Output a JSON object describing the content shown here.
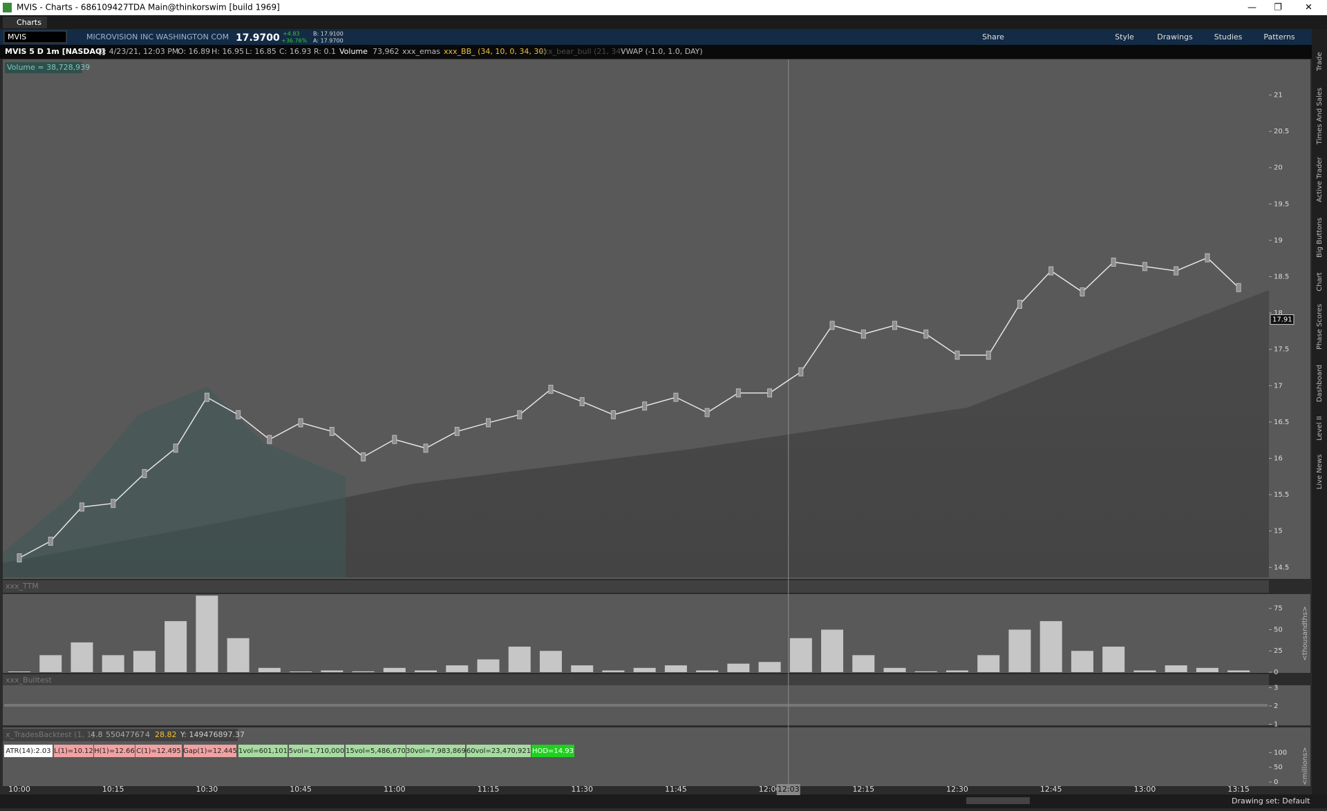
{
  "window": {
    "title": "MVIS - Charts - 686109427TDA Main@thinkorswim [build 1969]",
    "tab": "Charts"
  },
  "toolbar": {
    "symbol": "MVIS",
    "company": "MICROVISION INC WASHINGTON COM",
    "last": "17.9700",
    "change": "+4.83",
    "change_pct": "+36.76%",
    "bid": "B: 17.9100",
    "ask": "A: 17.9700",
    "buttons": [
      "Share",
      "Style",
      "Drawings",
      "Studies",
      "Patterns"
    ]
  },
  "info_bar": [
    "MVIS 5 D 1m [NASDAQ]",
    "D: 4/23/21, 12:03 PM",
    "O: 16.89",
    "H: 16.95",
    "L: 16.85",
    "C: 16.93",
    "R: 0.1",
    "Volume",
    "73,962",
    "xxx_emas",
    "xxx_BB_ (34, 10, 0, 34, 30)",
    "xxx_bear_bull (21, 34)",
    "VWAP (-1.0, 1.0, DAY)"
  ],
  "volume_label": "Volume = 38,728,939",
  "sidebar_tabs": [
    "Trade",
    "Times And Sales",
    "Active Trader",
    "Big Buttons",
    "Chart",
    "Phase Scores",
    "Dashboard",
    "Level II",
    "Live News"
  ],
  "chart_data": [
    {
      "type": "line",
      "color": "#e6e6e6",
      "categories": [
        "10:00",
        "10:05",
        "10:10",
        "10:15",
        "10:20",
        "10:25",
        "10:30",
        "10:35",
        "10:40",
        "10:45",
        "10:50",
        "10:55",
        "11:00",
        "11:05",
        "11:10",
        "11:15",
        "11:20",
        "11:25",
        "11:30",
        "11:35",
        "11:40",
        "11:45",
        "11:50",
        "11:55",
        "12:00",
        "12:05",
        "12:10",
        "12:15",
        "12:20",
        "12:25",
        "12:30",
        "12:35",
        "12:40",
        "12:45",
        "12:50",
        "12:55",
        "13:00",
        "13:05",
        "13:10",
        "13:15"
      ],
      "values": [
        14.63,
        14.86,
        15.33,
        15.38,
        15.79,
        16.14,
        16.84,
        16.6,
        16.26,
        16.49,
        16.37,
        16.02,
        16.26,
        16.14,
        16.37,
        16.49,
        16.6,
        16.95,
        16.78,
        16.6,
        16.72,
        16.84,
        16.63,
        16.9,
        16.9,
        17.19,
        17.83,
        17.71,
        17.83,
        17.71,
        17.42,
        17.42,
        18.12,
        18.58,
        18.29,
        18.7,
        18.64,
        18.58,
        18.76,
        18.35
      ],
      "ylim": [
        14.36,
        21.49
      ],
      "yticks": [
        14.5,
        15,
        15.5,
        16,
        16.5,
        17,
        17.5,
        18,
        18.5,
        19,
        19.5,
        20,
        20.5,
        21
      ],
      "last_price": 17.91,
      "x_labels": [
        "10:00",
        "10:15",
        "10:30",
        "10:45",
        "11:00",
        "11:15",
        "11:30",
        "11:45",
        "12:00",
        "12:15",
        "12:30",
        "12:45",
        "13:00",
        "13:15"
      ],
      "cursor": "12:03"
    },
    {
      "type": "bar",
      "title": "xxx_TTM",
      "axis_label": "<thousandths>",
      "color": "#d9d9d9",
      "categories": [
        "10:00",
        "10:05",
        "10:10",
        "10:15",
        "10:20",
        "10:25",
        "10:30",
        "10:35",
        "10:40",
        "10:45",
        "10:50",
        "10:55",
        "11:00",
        "11:05",
        "11:10",
        "11:15",
        "11:20",
        "11:25",
        "11:30",
        "11:35",
        "11:40",
        "11:45",
        "11:50",
        "11:55",
        "12:00",
        "12:05",
        "12:10",
        "12:15",
        "12:20",
        "12:25",
        "12:30",
        "12:35",
        "12:40",
        "12:45",
        "12:50",
        "12:55",
        "13:00",
        "13:05",
        "13:10",
        "13:15"
      ],
      "values": [
        0,
        20,
        35,
        20,
        25,
        60,
        90,
        40,
        5,
        0,
        2,
        1,
        5,
        2,
        8,
        15,
        30,
        25,
        8,
        2,
        5,
        8,
        2,
        10,
        12,
        40,
        50,
        20,
        5,
        1,
        2,
        20,
        50,
        60,
        25,
        30,
        2,
        8,
        5,
        2
      ],
      "ylim": [
        0,
        91
      ],
      "yticks": [
        0,
        25,
        50,
        75
      ]
    },
    {
      "type": "band",
      "title": "xxx_Bulltest",
      "ylim": [
        0.98,
        3.05
      ],
      "yticks": [
        1,
        2,
        3
      ]
    },
    {
      "type": "band",
      "title": "x_TradesBacktest (1, 1)",
      "axis_label": "<millions>",
      "ylim": [
        0,
        108
      ],
      "yticks": [
        0,
        50,
        100
      ],
      "readouts": [
        "4.8",
        "55047767",
        "4",
        "28.82",
        "Y: 149476897.37"
      ],
      "labels": [
        "ATR(14):2.03",
        "L(1)=10.12",
        "H(1)=12.66",
        "C(1)=12.495",
        "Gap(1)=12.445",
        "1vol=601,101",
        "5vol=1,710,000",
        "15vol=5,486,670",
        "30vol=7,983,869",
        "60vol=23,470,921",
        "HOD=14.93"
      ]
    }
  ],
  "status": "Drawing set: Default"
}
